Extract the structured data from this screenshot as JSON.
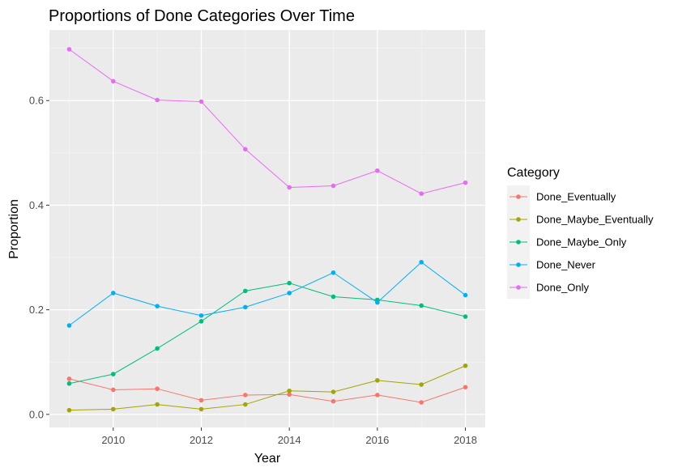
{
  "chart_data": {
    "type": "line",
    "title": "Proportions of Done Categories Over Time",
    "xlabel": "Year",
    "ylabel": "Proportion",
    "x": [
      2009,
      2010,
      2011,
      2012,
      2013,
      2014,
      2015,
      2016,
      2017,
      2018
    ],
    "xlim": [
      2008.55,
      2018.45
    ],
    "ylim": [
      -0.025,
      0.735
    ],
    "x_ticks": [
      2010,
      2012,
      2014,
      2016,
      2018
    ],
    "y_ticks": [
      0.0,
      0.2,
      0.4,
      0.6
    ],
    "y_tick_labels": [
      "0.0",
      "0.2",
      "0.4",
      "0.6"
    ],
    "grid": true,
    "legend": {
      "title": "Category",
      "position": "right"
    },
    "series": [
      {
        "name": "Done_Eventually",
        "color": "#F8766D",
        "values": [
          0.068,
          0.047,
          0.049,
          0.027,
          0.037,
          0.038,
          0.025,
          0.037,
          0.023,
          0.052
        ]
      },
      {
        "name": "Done_Maybe_Eventually",
        "color": "#A3A500",
        "values": [
          0.008,
          0.01,
          0.019,
          0.01,
          0.019,
          0.045,
          0.043,
          0.065,
          0.057,
          0.093
        ]
      },
      {
        "name": "Done_Maybe_Only",
        "color": "#00BF7D",
        "values": [
          0.059,
          0.077,
          0.126,
          0.178,
          0.236,
          0.251,
          0.225,
          0.219,
          0.208,
          0.187
        ]
      },
      {
        "name": "Done_Never",
        "color": "#00B0F6",
        "values": [
          0.17,
          0.232,
          0.207,
          0.189,
          0.205,
          0.232,
          0.271,
          0.214,
          0.291,
          0.228
        ]
      },
      {
        "name": "Done_Only",
        "color": "#E76BF3",
        "values": [
          0.698,
          0.637,
          0.601,
          0.598,
          0.507,
          0.434,
          0.437,
          0.466,
          0.422,
          0.443
        ]
      }
    ]
  }
}
